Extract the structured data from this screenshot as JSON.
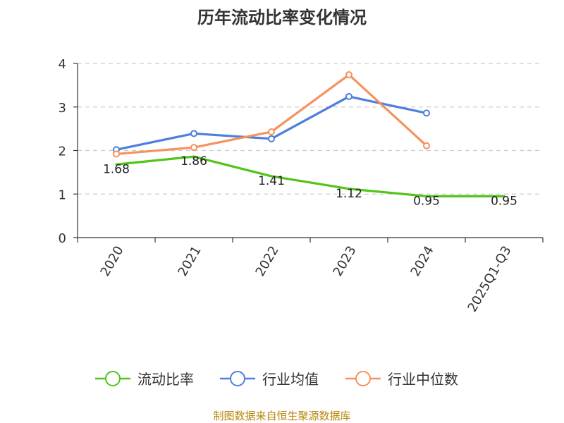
{
  "chart_data": {
    "type": "line",
    "title": "历年流动比率变化情况",
    "categories": [
      "2020",
      "2021",
      "2022",
      "2023",
      "2024",
      "2025Q1-Q3"
    ],
    "ylim": [
      0,
      4
    ],
    "yticks": [
      "0",
      "1",
      "2",
      "3",
      "4"
    ],
    "grid": true,
    "legend_position": "bottom",
    "series": [
      {
        "name": "流动比率",
        "color": "#52c41a",
        "values": [
          1.68,
          1.86,
          1.41,
          1.12,
          0.95,
          0.95
        ],
        "labels": [
          "1.68",
          "1.86",
          "1.41",
          "1.12",
          "0.95",
          "0.95"
        ]
      },
      {
        "name": "行业均值",
        "color": "#4e7fdc",
        "values": [
          2.02,
          2.39,
          2.27,
          3.24,
          2.86,
          null
        ]
      },
      {
        "name": "行业中位数",
        "color": "#f5925e",
        "values": [
          1.92,
          2.07,
          2.43,
          3.74,
          2.11,
          null
        ]
      }
    ],
    "source": "制图数据来自恒生聚源数据库"
  }
}
